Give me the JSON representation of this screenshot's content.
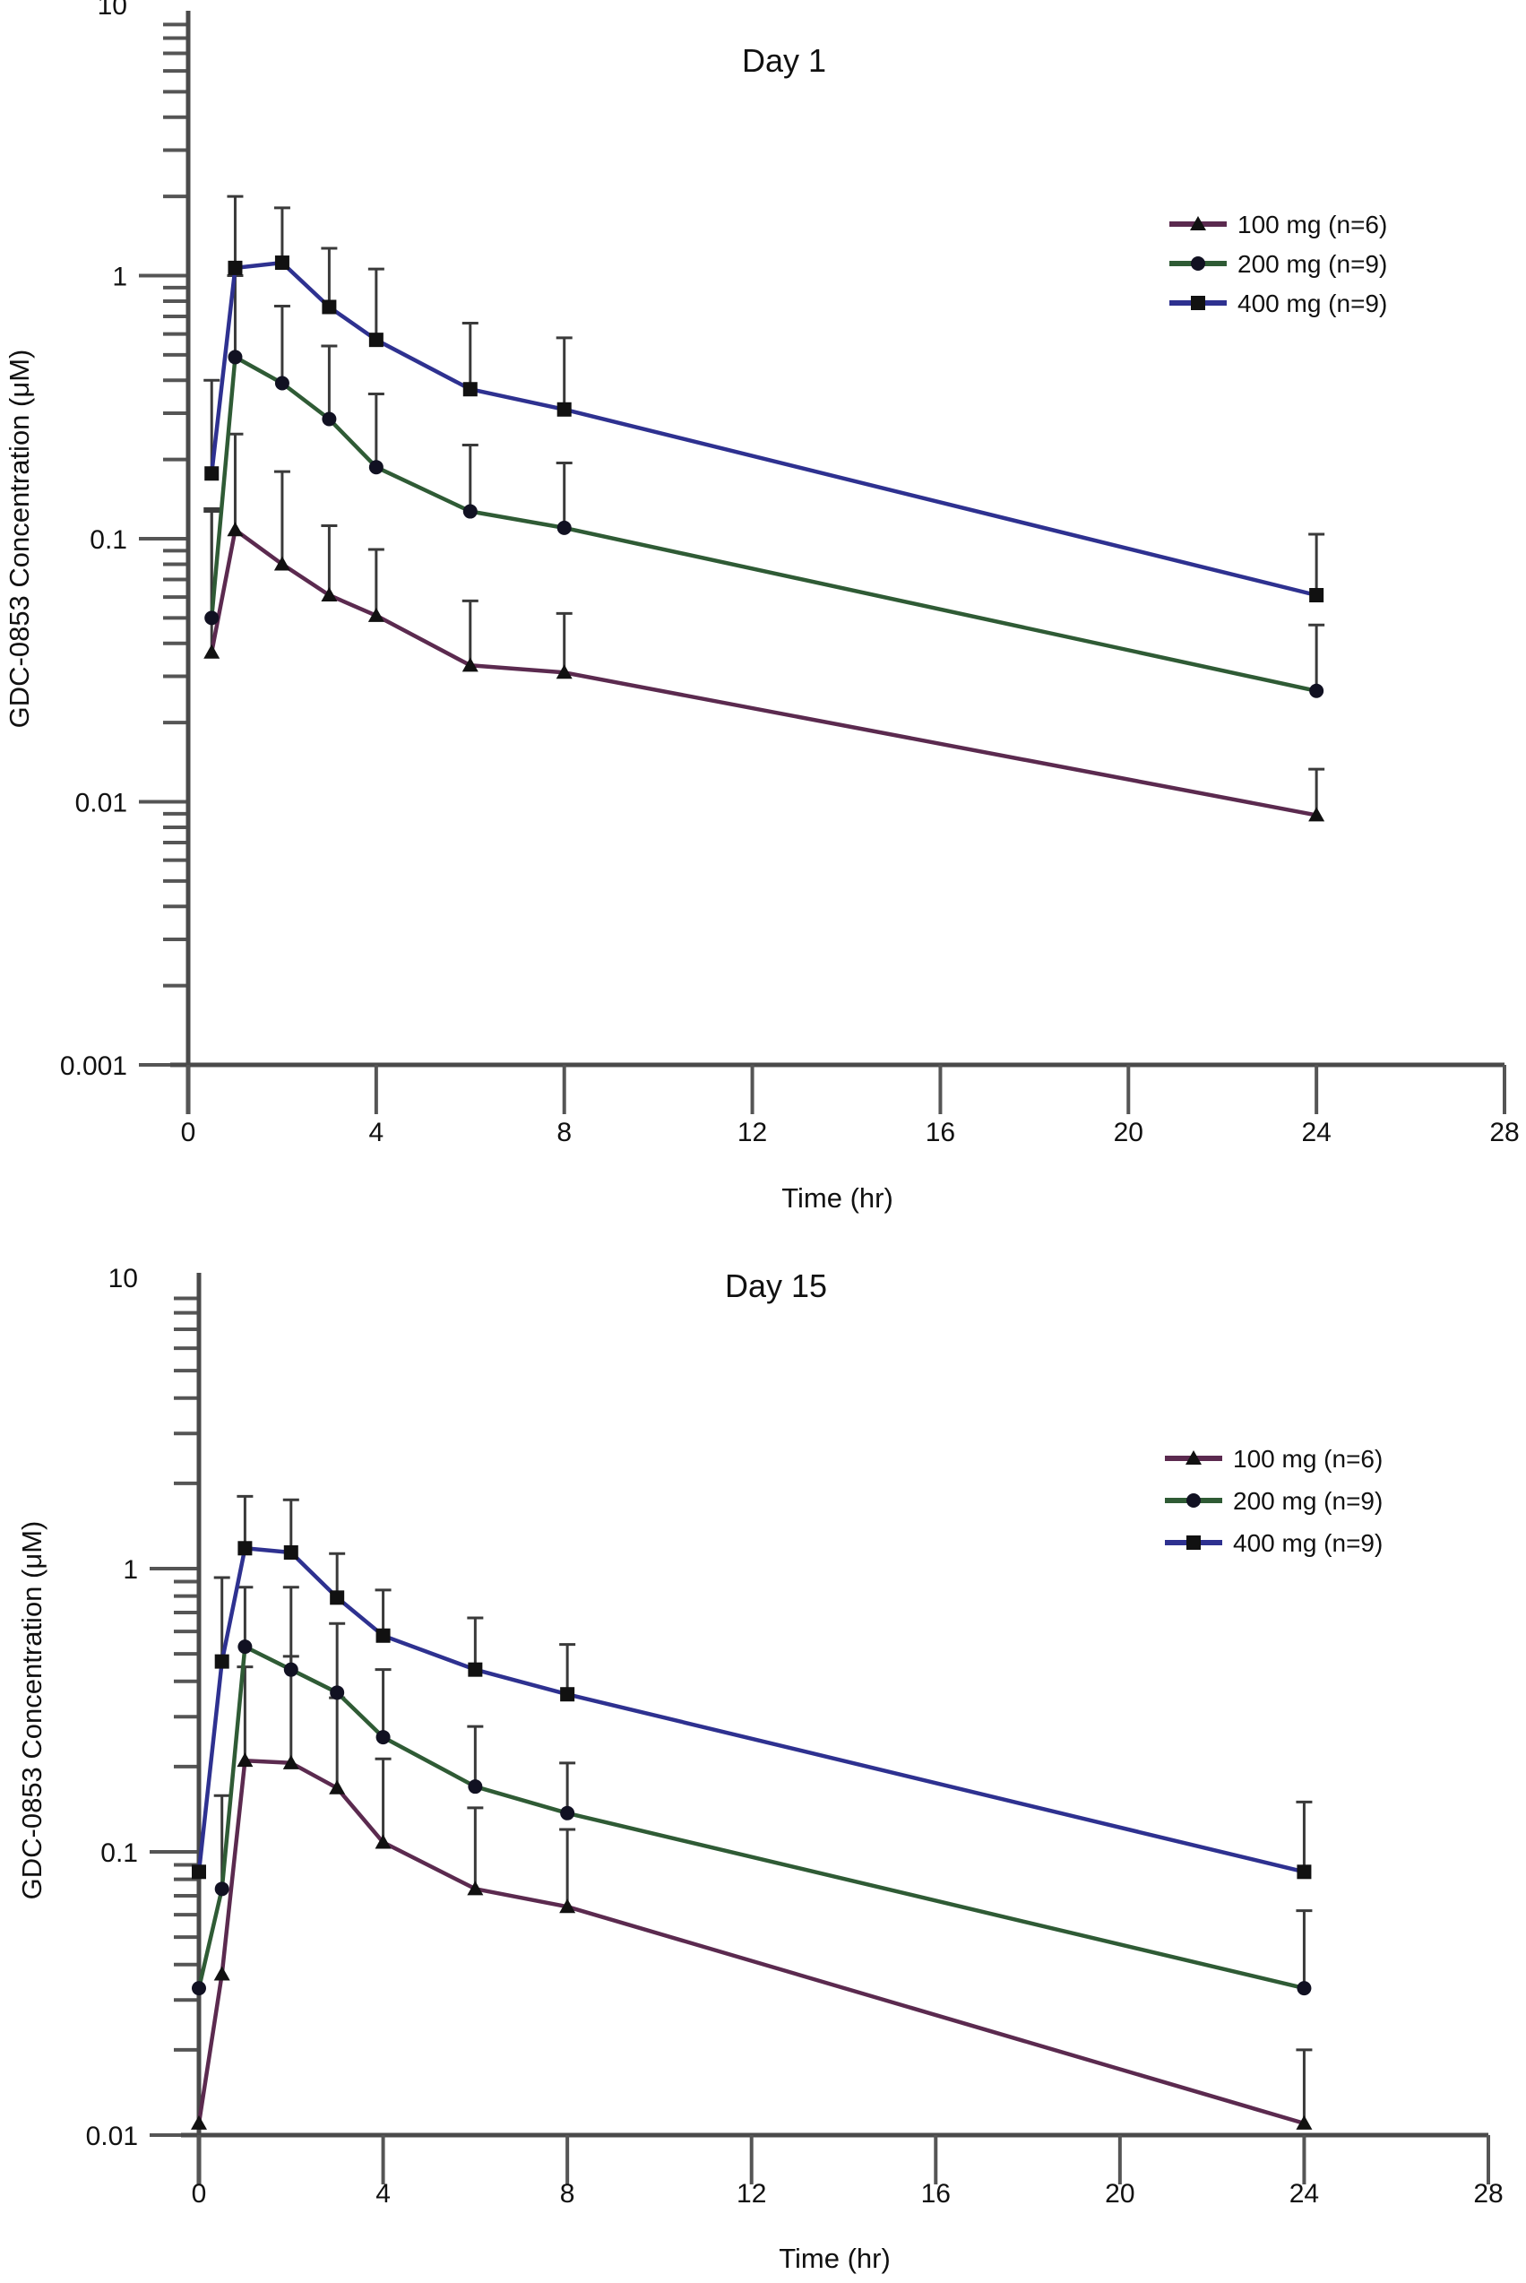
{
  "chart_data": [
    {
      "type": "line",
      "title": "Day 1",
      "xlabel": "Time (hr)",
      "ylabel": "GDC-0853 Concentration (μM)",
      "yscale": "log",
      "xlim": [
        0,
        28
      ],
      "ylim": [
        0.001,
        10
      ],
      "x_ticks": [
        0,
        4,
        8,
        12,
        16,
        20,
        24,
        28
      ],
      "y_tick_labels": [
        "10",
        "1",
        "0.1",
        "0.01",
        "0.001"
      ],
      "y_ticks": [
        10,
        1,
        0.1,
        0.01,
        0.001
      ],
      "legend_position": "top-right",
      "series": [
        {
          "name": "100 mg (n=6)",
          "color": "#5b2a4f",
          "marker": "triangle",
          "x": [
            0.5,
            1,
            2,
            3,
            4,
            6,
            8,
            24
          ],
          "values": [
            0.037,
            0.108,
            0.08,
            0.061,
            0.051,
            0.033,
            0.031,
            0.0089
          ],
          "error_upper": [
            0.13,
            0.25,
            0.18,
            0.112,
            0.091,
            0.058,
            0.052,
            0.0133
          ]
        },
        {
          "name": "200 mg (n=9)",
          "color": "#2f5b35",
          "marker": "circle",
          "x": [
            0.5,
            1,
            2,
            3,
            4,
            6,
            8,
            24
          ],
          "values": [
            0.05,
            0.49,
            0.39,
            0.285,
            0.187,
            0.127,
            0.11,
            0.0264
          ],
          "error_upper": [
            0.127,
            1.0,
            0.766,
            0.54,
            0.355,
            0.227,
            0.194,
            0.047
          ]
        },
        {
          "name": "400 mg (n=9)",
          "color": "#2e3190",
          "marker": "square",
          "x": [
            0.5,
            1,
            2,
            3,
            4,
            6,
            8,
            24
          ],
          "values": [
            0.177,
            1.07,
            1.12,
            0.76,
            0.57,
            0.37,
            0.31,
            0.061
          ],
          "error_upper": [
            0.4,
            2.0,
            1.81,
            1.27,
            1.06,
            0.66,
            0.58,
            0.104
          ]
        }
      ]
    },
    {
      "type": "line",
      "title": "Day 15",
      "xlabel": "Time (hr)",
      "ylabel": "GDC-0853 Concentration (μM)",
      "yscale": "log",
      "xlim": [
        0,
        28
      ],
      "ylim": [
        0.01,
        10
      ],
      "x_ticks": [
        0,
        4,
        8,
        12,
        16,
        20,
        24,
        28
      ],
      "y_tick_labels": [
        "10",
        "1",
        "0.1",
        "0.01"
      ],
      "y_ticks": [
        10,
        1,
        0.1,
        0.01
      ],
      "legend_position": "top-right",
      "series": [
        {
          "name": "100 mg (n=6)",
          "color": "#5b2a4f",
          "marker": "triangle",
          "x": [
            0,
            0.5,
            1,
            2,
            3,
            4,
            6,
            8,
            24
          ],
          "values": [
            0.011,
            0.037,
            0.21,
            0.206,
            0.168,
            0.108,
            0.074,
            0.064,
            0.011
          ],
          "error_upper": [
            null,
            null,
            0.45,
            0.49,
            0.35,
            0.213,
            0.143,
            0.12,
            0.02
          ]
        },
        {
          "name": "200 mg (n=9)",
          "color": "#2f5b35",
          "marker": "circle",
          "x": [
            0,
            0.5,
            1,
            2,
            3,
            4,
            6,
            8,
            24
          ],
          "values": [
            0.033,
            0.074,
            0.53,
            0.44,
            0.365,
            0.254,
            0.17,
            0.137,
            0.033
          ],
          "error_upper": [
            null,
            0.158,
            0.86,
            0.86,
            0.64,
            0.44,
            0.277,
            0.206,
            0.062
          ]
        },
        {
          "name": "400 mg (n=9)",
          "color": "#2e3190",
          "marker": "square",
          "x": [
            0,
            0.5,
            1,
            2,
            3,
            4,
            6,
            8,
            24
          ],
          "values": [
            0.085,
            0.47,
            1.18,
            1.14,
            0.79,
            0.58,
            0.44,
            0.36,
            0.085
          ],
          "error_upper": [
            null,
            0.93,
            1.8,
            1.75,
            1.13,
            0.84,
            0.67,
            0.54,
            0.15
          ]
        }
      ]
    }
  ]
}
